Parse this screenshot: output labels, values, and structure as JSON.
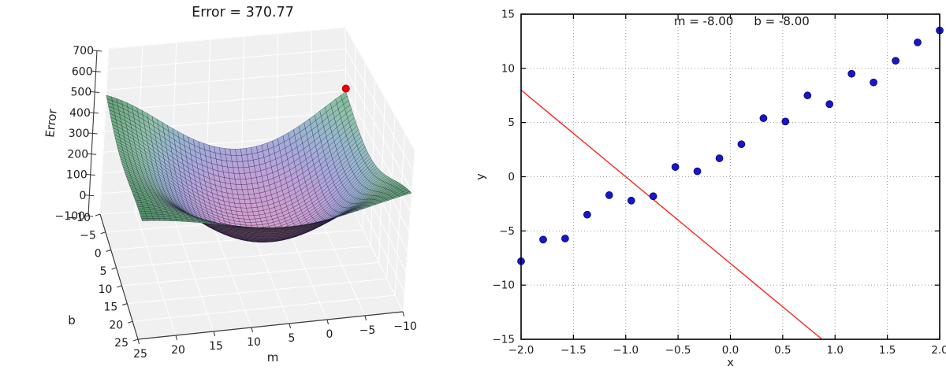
{
  "left_plot": {
    "title": "Error = 370.77",
    "xlabel": "m",
    "ylabel": "b",
    "zlabel": "Error",
    "m_tick_labels": [
      "25",
      "20",
      "15",
      "10",
      "5",
      "0",
      "−5",
      "−10"
    ],
    "b_tick_labels": [
      "−10",
      "−5",
      "0",
      "5",
      "10",
      "15",
      "20",
      "25"
    ],
    "error_tick_labels": [
      "700",
      "600",
      "500",
      "400",
      "300",
      "200",
      "100",
      "0",
      "−100"
    ],
    "pane_color": "#f1f0f1",
    "pane_grid_color": "#ffffff",
    "pane_edge_color": "#c9c9c9",
    "axis_line_color": "#3a3a3a",
    "marker_color": "#ee0000",
    "surface_colormap": [
      "#d39fcd",
      "#c1a0d6",
      "#a8a8dc",
      "#98b7cf",
      "#8ec2a8",
      "#77b289",
      "#4f8f63"
    ],
    "mesh_line_color": "rgba(20,18,45,0.7)"
  },
  "right_plot": {
    "title_m": "m = -8.00",
    "title_b": "b = -8.00",
    "xlabel": "x",
    "ylabel": "y",
    "xlim": [
      -2.0,
      2.0
    ],
    "ylim": [
      -15,
      15
    ],
    "x_tick_labels": [
      "−2.0",
      "−1.5",
      "−1.0",
      "−0.5",
      "0.0",
      "0.5",
      "1.0",
      "1.5",
      "2.0"
    ],
    "y_tick_labels": [
      "−15",
      "−10",
      "−5",
      "0",
      "5",
      "10",
      "15"
    ],
    "grid_color": "#999999",
    "spine_color": "#000000",
    "point_color": "#1616cc",
    "point_edge_color": "#000060",
    "line_color": "#ff2222"
  },
  "chart_data": [
    {
      "type": "surface",
      "title": "Error = 370.77",
      "xlabel": "m",
      "ylabel": "b",
      "zlabel": "Error",
      "m_range": [
        -10,
        25
      ],
      "b_range": [
        -10,
        25
      ],
      "error_range": [
        -100,
        700
      ],
      "m_ticks": [
        25,
        20,
        15,
        10,
        5,
        0,
        -5,
        -10
      ],
      "b_ticks": [
        -10,
        -5,
        0,
        5,
        10,
        15,
        20,
        25
      ],
      "error_ticks": [
        700,
        600,
        500,
        400,
        300,
        200,
        100,
        0,
        -100
      ],
      "surface_formula": "Error(m,b) = mean_i (y_i - (m*x_i + b))^2 over the scatter data of the right plot",
      "current_point": {
        "m": -8.0,
        "b": -8.0,
        "error": 370.77
      },
      "legend": "none",
      "grid": true
    },
    {
      "type": "scatter",
      "title": "m = -8.00    b = -8.00",
      "xlabel": "x",
      "ylabel": "y",
      "xlim": [
        -2.0,
        2.0
      ],
      "ylim": [
        -15,
        15
      ],
      "x_ticks": [
        -2.0,
        -1.5,
        -1.0,
        -0.5,
        0.0,
        0.5,
        1.0,
        1.5,
        2.0
      ],
      "y_ticks": [
        -15,
        -10,
        -5,
        0,
        5,
        10,
        15
      ],
      "x": [
        -2.0,
        -1.789,
        -1.579,
        -1.368,
        -1.158,
        -0.947,
        -0.737,
        -0.526,
        -0.316,
        -0.105,
        0.105,
        0.316,
        0.526,
        0.737,
        0.947,
        1.158,
        1.368,
        1.579,
        1.789,
        2.0
      ],
      "y": [
        -7.8,
        -5.8,
        -5.7,
        -3.5,
        -1.7,
        -2.2,
        -1.8,
        0.9,
        0.5,
        1.7,
        3.0,
        5.4,
        5.1,
        7.5,
        6.7,
        9.5,
        8.7,
        10.7,
        12.4,
        13.5
      ],
      "fit_line": {
        "slope": -8.0,
        "intercept": -8.0
      },
      "legend": "none",
      "grid": "dotted"
    }
  ]
}
